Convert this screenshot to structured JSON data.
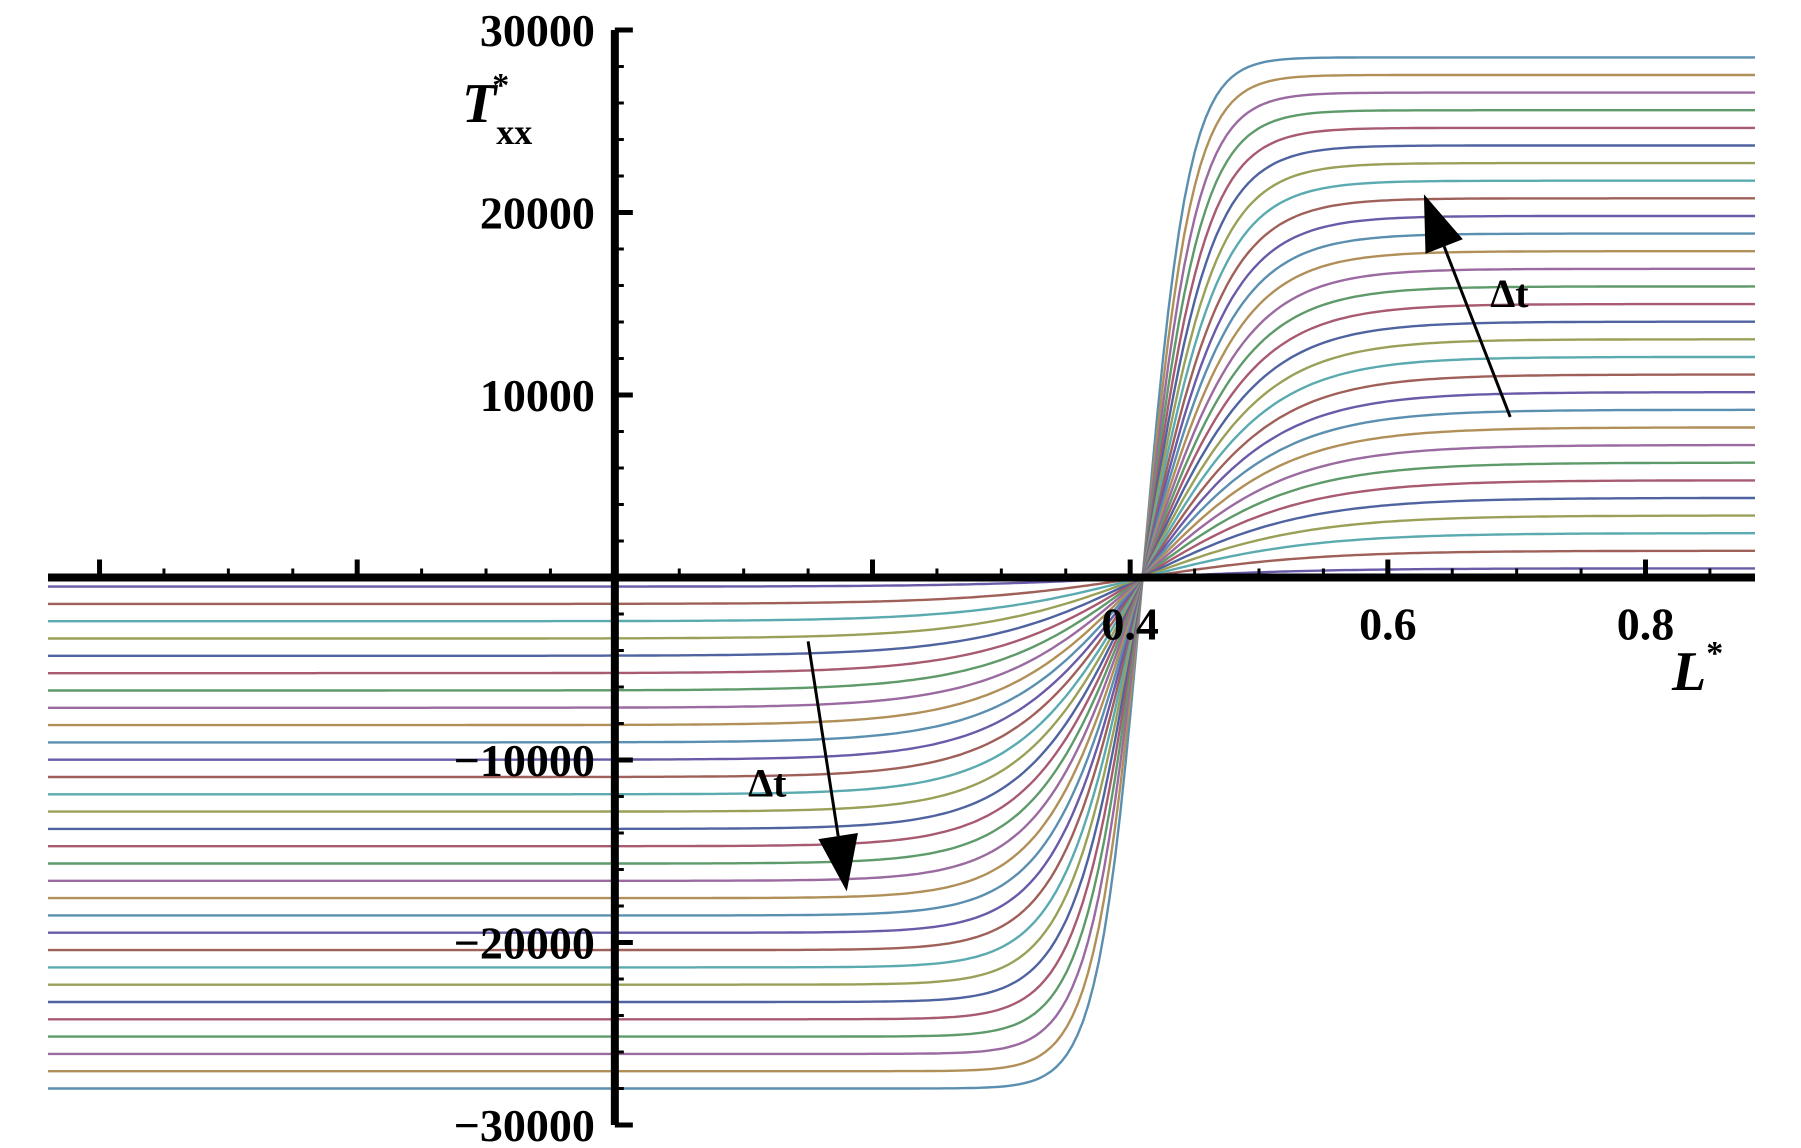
{
  "chart_data": {
    "type": "line",
    "title": "",
    "xlabel": "L",
    "xlabel_sup": "*",
    "ylabel": "T",
    "ylabel_sub": "xx",
    "ylabel_sup": "*",
    "xlim": [
      -0.44,
      0.885
    ],
    "ylim": [
      -30000,
      30000
    ],
    "x_ticks": [
      0.4,
      0.6,
      0.8
    ],
    "x_tick_labels": [
      "0.4",
      "0.6",
      "0.8"
    ],
    "y_ticks": [
      -30000,
      -20000,
      -10000,
      10000,
      20000,
      30000
    ],
    "y_tick_labels": [
      "−30000",
      "−20000",
      "−10000",
      "10000",
      "20000",
      "30000"
    ],
    "grid": false,
    "legend": "none",
    "family": {
      "n_curves": 30,
      "center_x": 0.41,
      "left_plateau_range": [
        -28000,
        -500
      ],
      "right_plateau_range": [
        28500,
        500
      ],
      "transition_width_range": [
        0.035,
        0.14
      ]
    },
    "palette": [
      "#5b8fb0",
      "#b09058",
      "#9a6aa0",
      "#5e9a6a",
      "#a85a70",
      "#4e63a0",
      "#9aa058",
      "#5aaab0",
      "#a0605a",
      "#6a5aa8"
    ],
    "annotations": [
      {
        "text": "Δt",
        "arrow_from": [
          0.695,
          8800
        ],
        "arrow_to": [
          0.628,
          21000
        ]
      },
      {
        "text": "Δt",
        "arrow_from": [
          0.15,
          -3500
        ],
        "arrow_to": [
          0.18,
          -17200
        ]
      }
    ]
  }
}
